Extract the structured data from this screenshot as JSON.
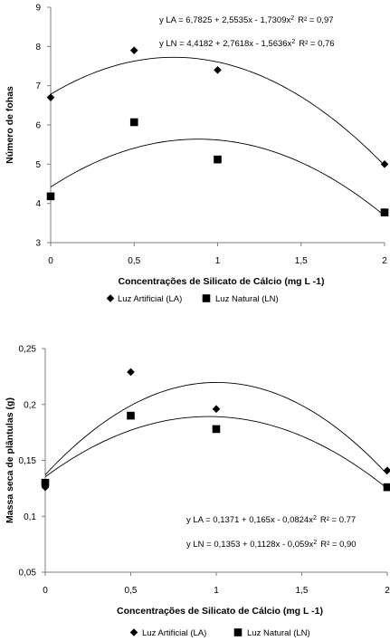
{
  "chart_data": [
    {
      "type": "scatter",
      "xlabel": "Concentrações de Silicato de Cálcio (mg L -1)",
      "ylabel": "Número de fohas",
      "xlim": [
        0,
        2
      ],
      "ylim": [
        3,
        9
      ],
      "x_ticks": [
        "0",
        "0,5",
        "1",
        "1,5",
        "2"
      ],
      "y_ticks": [
        "3",
        "4",
        "5",
        "6",
        "7",
        "8",
        "9"
      ],
      "grid": false,
      "legend_position": "bottom",
      "series": [
        {
          "name": "Luz Artificial (LA)",
          "marker": "diamond",
          "x": [
            0,
            0.5,
            1,
            2
          ],
          "y": [
            6.7,
            7.9,
            7.4,
            5.0
          ],
          "trendline": {
            "type": "poly2",
            "c0": 6.7825,
            "c1": 2.5535,
            "c2": -1.7309
          },
          "equation_label": "y LA = 6,7825 + 2,5535x - 1,7309x",
          "r2_label": "R² = 0,97"
        },
        {
          "name": "Luz Natural (LN)",
          "marker": "square",
          "x": [
            0,
            0.5,
            1,
            2
          ],
          "y": [
            4.18,
            6.07,
            5.12,
            3.77
          ],
          "trendline": {
            "type": "poly2",
            "c0": 4.4182,
            "c1": 2.7618,
            "c2": -1.5636
          },
          "equation_label": "y LN = 4,4182 + 2,7618x - 1,5636x",
          "r2_label": "R² = 0,76"
        }
      ]
    },
    {
      "type": "scatter",
      "xlabel": "Concentrações de Silicato de Cálcio (mg L -1)",
      "ylabel": "Massa seca de plântulas (g)",
      "xlim": [
        0,
        2
      ],
      "ylim": [
        0.05,
        0.25
      ],
      "x_ticks": [
        "0",
        "0,5",
        "1",
        "1,5",
        "2"
      ],
      "y_ticks": [
        "0,05",
        "0,1",
        "0,15",
        "0,2",
        "0,25"
      ],
      "grid": false,
      "legend_position": "bottom",
      "series": [
        {
          "name": "Luz Artificial (LA)",
          "marker": "diamond",
          "x": [
            0,
            0.5,
            1,
            2
          ],
          "y": [
            0.126,
            0.229,
            0.196,
            0.141
          ],
          "trendline": {
            "type": "poly2",
            "c0": 0.1371,
            "c1": 0.165,
            "c2": -0.0824
          },
          "equation_label": "y LA = 0,1371 + 0,165x - 0,0824x",
          "r2_label": "R² = 0.77"
        },
        {
          "name": "Luz Natural (LN)",
          "marker": "square",
          "x": [
            0,
            0.5,
            1,
            2
          ],
          "y": [
            0.13,
            0.19,
            0.178,
            0.126
          ],
          "trendline": {
            "type": "poly2",
            "c0": 0.1353,
            "c1": 0.1128,
            "c2": -0.059
          },
          "equation_label": "y LN = 0,1353 + 0,1128x - 0,059x",
          "r2_label": "R² = 0,90"
        }
      ]
    }
  ]
}
